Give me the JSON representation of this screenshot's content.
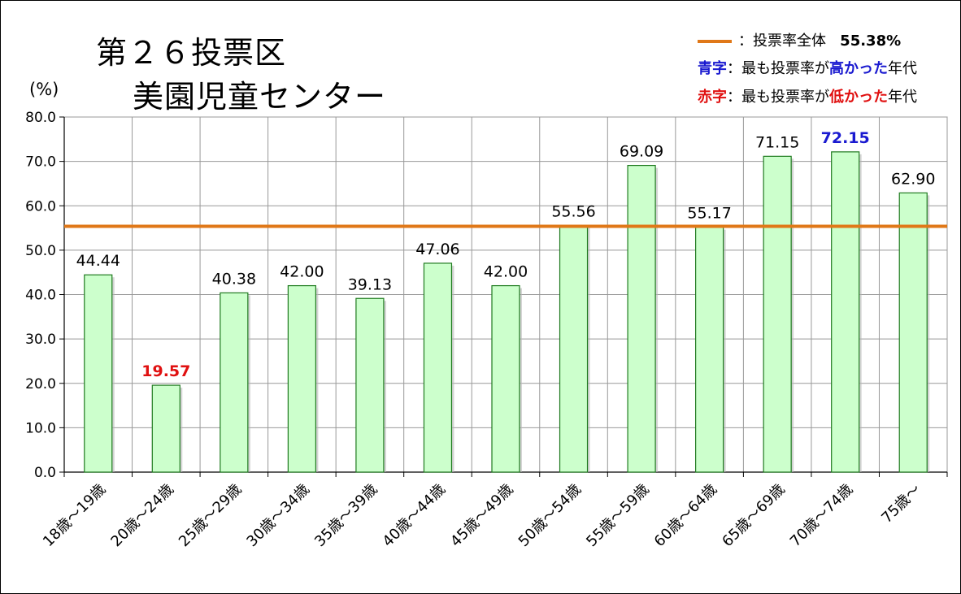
{
  "chart_data": {
    "type": "bar",
    "title_line1": "第２６投票区",
    "title_line2": "美園児童センター",
    "ylabel": "(%)",
    "ylim": [
      0,
      80
    ],
    "yticks": [
      "0.0",
      "10.0",
      "20.0",
      "30.0",
      "40.0",
      "50.0",
      "60.0",
      "70.0",
      "80.0"
    ],
    "categories": [
      "18歳～19歳",
      "20歳～24歳",
      "25歳～29歳",
      "30歳～34歳",
      "35歳～39歳",
      "40歳～44歳",
      "45歳～49歳",
      "50歳～54歳",
      "55歳～59歳",
      "60歳～64歳",
      "65歳～69歳",
      "70歳～74歳",
      "75歳～"
    ],
    "values": [
      44.44,
      19.57,
      40.38,
      42.0,
      39.13,
      47.06,
      42.0,
      55.56,
      69.09,
      55.17,
      71.15,
      72.15,
      62.9
    ],
    "value_labels": [
      "44.44",
      "19.57",
      "40.38",
      "42.00",
      "39.13",
      "47.06",
      "42.00",
      "55.56",
      "69.09",
      "55.17",
      "71.15",
      "72.15",
      "62.90"
    ],
    "highest_index": 11,
    "lowest_index": 1,
    "overall_rate": 55.38,
    "grid": true,
    "legend_placement": "top-right",
    "colors": {
      "bar_fill": "#ccffcc",
      "bar_stroke": "#1f7a1f",
      "overall_line": "#e07818",
      "highest": "#1a1ad0",
      "lowest": "#e01010",
      "grid": "#999999"
    }
  },
  "legend": {
    "overall_label": "：投票率全体",
    "overall_value": "55.38%",
    "blue_key": "青字",
    "blue_mid": "：最も投票率が",
    "blue_em": "高かった",
    "blue_tail": "年代",
    "red_key": "赤字",
    "red_mid": "：最も投票率が",
    "red_em": "低かった",
    "red_tail": "年代"
  }
}
